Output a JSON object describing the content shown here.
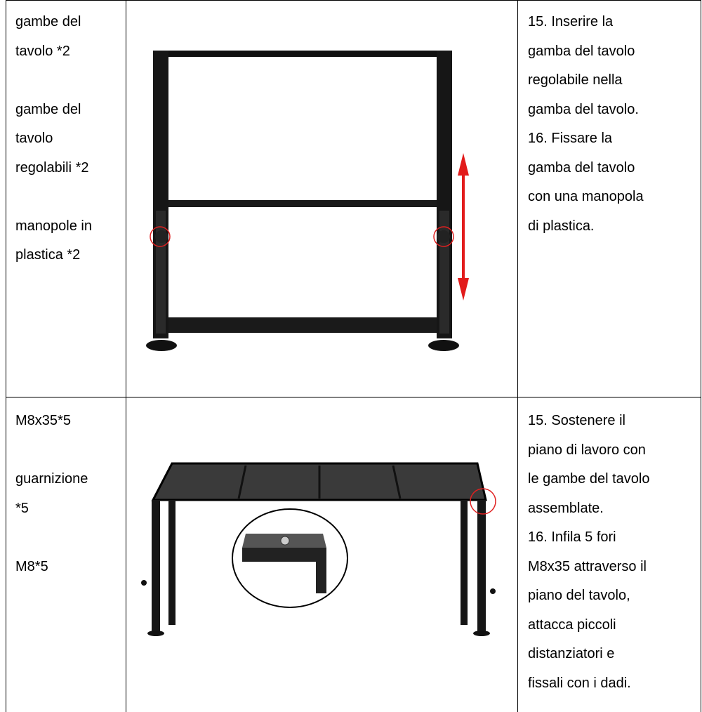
{
  "table": {
    "rows": [
      {
        "parts": [
          [
            "gambe del",
            "tavolo *2"
          ],
          [
            "gambe del",
            "tavolo",
            "regolabili *2"
          ],
          [
            "manopole in",
            "plastica *2"
          ]
        ],
        "steps": [
          [
            "15.  Inserire la",
            "gamba del tavolo",
            "regolabile nella",
            "gamba del tavolo."
          ],
          [
            "16.  Fissare la",
            "gamba del tavolo",
            "con una manopola",
            "di plastica."
          ]
        ]
      },
      {
        "parts": [
          [
            "M8x35*5"
          ],
          [
            "guarnizione",
            "*5"
          ],
          [
            "M8*5"
          ]
        ],
        "steps": [
          [
            "15. Sostenere il",
            "piano di lavoro con",
            "le gambe del tavolo",
            "assemblate."
          ],
          [
            "16. Infila 5 fori",
            "M8x35 attraverso il",
            "piano del tavolo,",
            "attacca piccoli",
            "distanziatori e",
            "fissali con i dadi."
          ]
        ]
      }
    ]
  }
}
